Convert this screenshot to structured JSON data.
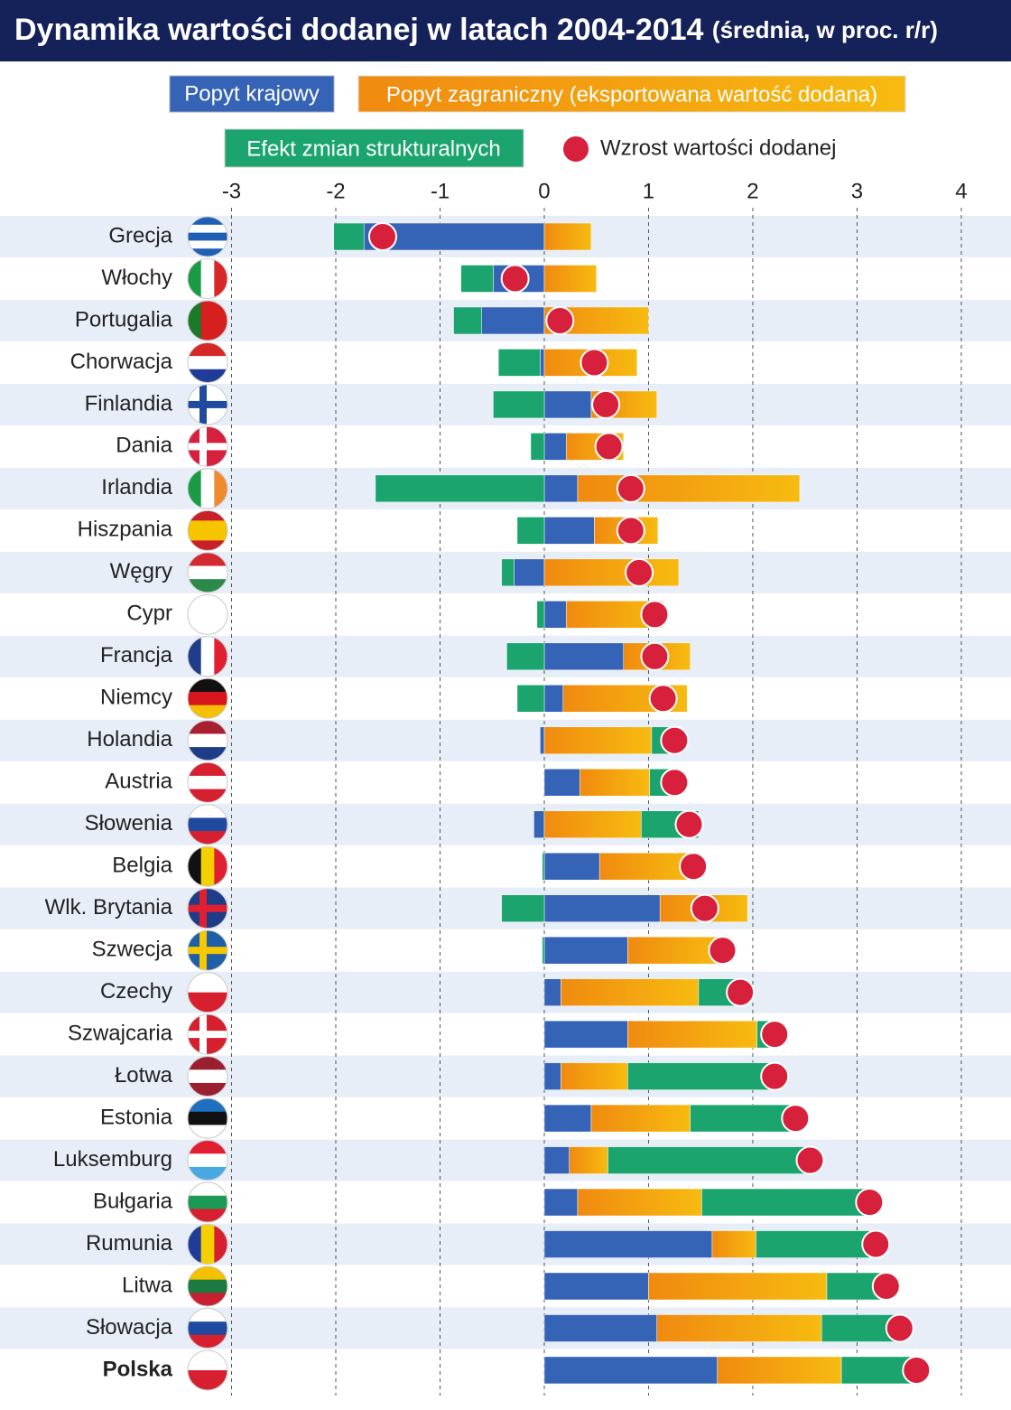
{
  "chart_data": {
    "type": "bar",
    "orientation": "horizontal",
    "stacked": true,
    "title": "Dynamika wartości dodanej w latach 2004-2014",
    "subtitle": "(średnia, w proc. r/r)",
    "categories": [
      "Grecja",
      "Włochy",
      "Portugalia",
      "Chorwacja",
      "Finlandia",
      "Dania",
      "Irlandia",
      "Hiszpania",
      "Węgry",
      "Cypr",
      "Francja",
      "Niemcy",
      "Holandia",
      "Austria",
      "Słowenia",
      "Belgia",
      "Wlk. Brytania",
      "Szwecja",
      "Czechy",
      "Szwajcaria",
      "Łotwa",
      "Estonia",
      "Luksemburg",
      "Bułgaria",
      "Rumunia",
      "Litwa",
      "Słowacja",
      "Polska"
    ],
    "bold_category": "Polska",
    "series": [
      {
        "name": "Popyt krajowy",
        "color": "#3563b5",
        "values": [
          -1.73,
          -0.49,
          -0.6,
          -0.04,
          0.45,
          0.21,
          0.32,
          0.48,
          -0.29,
          0.21,
          0.76,
          0.18,
          -0.04,
          0.34,
          -0.1,
          0.53,
          1.11,
          0.8,
          0.16,
          0.8,
          0.16,
          0.45,
          0.24,
          0.32,
          1.61,
          1.0,
          1.08,
          1.66
        ]
      },
      {
        "name": "Popyt zagraniczny (eksportowana wartość dodana)",
        "color": "#f39a1c",
        "values": [
          0.45,
          0.5,
          1.0,
          0.89,
          0.63,
          0.55,
          2.13,
          0.61,
          1.29,
          0.93,
          0.64,
          1.19,
          1.03,
          0.67,
          0.93,
          0.9,
          0.84,
          0.9,
          1.32,
          1.24,
          0.64,
          0.95,
          0.37,
          1.19,
          0.42,
          1.71,
          1.58,
          1.19
        ]
      },
      {
        "name": "Efekt zmian strukturalnych",
        "color": "#1ba46e",
        "values": [
          -0.29,
          -0.31,
          -0.27,
          -0.4,
          -0.49,
          -0.13,
          -1.62,
          -0.26,
          -0.12,
          -0.07,
          -0.36,
          -0.26,
          0.22,
          0.25,
          0.55,
          -0.02,
          -0.41,
          -0.02,
          0.4,
          0.17,
          1.41,
          1.0,
          1.93,
          1.61,
          1.14,
          0.56,
          0.74,
          0.71
        ]
      },
      {
        "name": "Wzrost wartości dodanej",
        "type": "scatter",
        "color": "#d7203b",
        "values": [
          -1.55,
          -0.28,
          0.15,
          0.48,
          0.59,
          0.62,
          0.83,
          0.83,
          0.91,
          1.06,
          1.06,
          1.14,
          1.25,
          1.25,
          1.39,
          1.43,
          1.54,
          1.71,
          1.88,
          2.21,
          2.21,
          2.41,
          2.55,
          3.12,
          3.18,
          3.28,
          3.41,
          3.57
        ]
      }
    ],
    "xlim": [
      -3.3,
      4.3
    ],
    "xticks": [
      -3,
      -2,
      -1,
      0,
      1,
      2,
      3,
      4
    ],
    "grid": true
  }
}
